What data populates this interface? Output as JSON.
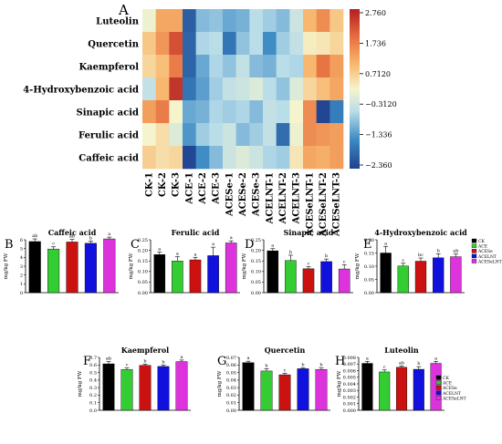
{
  "figure": {
    "panel_letters": [
      "A",
      "B",
      "C",
      "D",
      "E",
      "F",
      "G",
      "H"
    ],
    "legend_groups": [
      "CK",
      "ACE",
      "ACESe",
      "ACELNT",
      "ACESeLNT"
    ],
    "group_colors": [
      "#000000",
      "#33cc33",
      "#cc1111",
      "#1111dd",
      "#dd33dd"
    ]
  },
  "chart_data": [
    {
      "panel": "A",
      "type": "heatmap",
      "rows": [
        "Luteolin",
        "Quercetin",
        "Kaempferol",
        "4-Hydroxybenzoic acid",
        "Sinapic acid",
        "Ferulic acid",
        "Caffeic acid"
      ],
      "columns": [
        "CK-1",
        "CK-2",
        "CK-3",
        "ACE-1",
        "ACE-2",
        "ACE-3",
        "ACESe-1",
        "ACESe-2",
        "ACESe-3",
        "ACELNT-1",
        "ACELNT-2",
        "ACELNT-3",
        "ACESeLNT-1",
        "ACESeLNT-2",
        "ACESeLNT-3"
      ],
      "colorbar_ticks": [
        "2.760",
        "1.736",
        "0.7120",
        "−0.3120",
        "−1.336",
        "−2.360"
      ],
      "color_range": [
        -2.36,
        2.76
      ],
      "values": [
        [
          0.1,
          1.2,
          1.2,
          -2.0,
          -0.9,
          -0.8,
          -1.1,
          -1.0,
          -0.5,
          -0.7,
          -0.9,
          -0.3,
          1.0,
          1.5,
          0.8
        ],
        [
          0.8,
          1.4,
          2.2,
          -1.9,
          -0.6,
          -0.5,
          -1.7,
          -0.8,
          -0.5,
          -1.4,
          -0.7,
          -0.4,
          0.3,
          0.4,
          0.6
        ],
        [
          0.6,
          0.9,
          1.7,
          -1.9,
          -1.1,
          -0.6,
          -0.8,
          -0.4,
          -0.9,
          -1.0,
          -0.5,
          -0.6,
          1.0,
          1.8,
          1.3
        ],
        [
          -0.4,
          1.0,
          2.5,
          -1.7,
          -1.2,
          -0.7,
          -0.4,
          -0.3,
          -0.1,
          -0.5,
          -0.8,
          -0.1,
          0.6,
          0.9,
          1.2
        ],
        [
          1.3,
          1.7,
          0.2,
          -1.1,
          -1.0,
          -0.6,
          -0.7,
          -0.6,
          -0.9,
          -0.4,
          -0.5,
          0.2,
          1.5,
          -2.3,
          -1.6
        ],
        [
          0.2,
          0.5,
          -0.1,
          -1.3,
          -0.7,
          -0.5,
          -0.3,
          -0.9,
          -0.7,
          -0.4,
          -1.8,
          0.1,
          1.5,
          1.4,
          1.3
        ],
        [
          0.7,
          0.5,
          0.6,
          -2.3,
          -1.4,
          -0.9,
          -0.3,
          -0.1,
          -0.3,
          -0.6,
          -0.7,
          0.4,
          1.2,
          1.1,
          1.3
        ]
      ]
    },
    {
      "panel": "B",
      "type": "bar",
      "title": "Caffeic acid",
      "ylabel": "mg/kg FW",
      "categories": [
        "CK",
        "ACE",
        "ACESe",
        "ACELNT",
        "ACESeLNT"
      ],
      "values": [
        5.8,
        4.95,
        5.75,
        5.6,
        6.1
      ],
      "errors": [
        0.3,
        0.25,
        0.3,
        0.25,
        0.2
      ],
      "letters": [
        "ab",
        "c",
        "ab",
        "b",
        "a"
      ],
      "ylim": [
        0,
        6
      ],
      "yticks": [
        "0",
        "1",
        "2",
        "3",
        "4",
        "5",
        "6"
      ]
    },
    {
      "panel": "C",
      "type": "bar",
      "title": "Ferulic acid",
      "ylabel": "mg/kg FW",
      "categories": [
        "CK",
        "ACE",
        "ACESe",
        "ACELNT",
        "ACESeLNT"
      ],
      "values": [
        0.18,
        0.15,
        0.155,
        0.175,
        0.235
      ],
      "errors": [
        0.012,
        0.02,
        0.012,
        0.04,
        0.01
      ],
      "letters": [
        "a",
        "a",
        "a",
        "a",
        "a"
      ],
      "ylim": [
        0,
        0.25
      ],
      "yticks": [
        "0.00",
        "0.05",
        "0.10",
        "0.15",
        "0.20",
        "0.25"
      ]
    },
    {
      "panel": "D",
      "type": "bar",
      "title": "Sinapic acid",
      "ylabel": "mg/kg FW",
      "categories": [
        "CK",
        "ACE",
        "ACESe",
        "ACELNT",
        "ACESeLNT"
      ],
      "values": [
        0.198,
        0.152,
        0.113,
        0.147,
        0.112
      ],
      "errors": [
        0.01,
        0.025,
        0.01,
        0.012,
        0.02
      ],
      "letters": [
        "a",
        "b",
        "c",
        "b",
        "c"
      ],
      "ylim": [
        0,
        0.25
      ],
      "yticks": [
        "0.00",
        "0.05",
        "0.10",
        "0.15",
        "0.20",
        "0.25"
      ]
    },
    {
      "panel": "E",
      "type": "bar",
      "title": "4-Hydroxybenzoic acid",
      "ylabel": "mg/kg FW",
      "categories": [
        "CK",
        "ACE",
        "ACESe",
        "ACELNT",
        "ACESeLNT"
      ],
      "values": [
        0.15,
        0.101,
        0.119,
        0.132,
        0.136
      ],
      "errors": [
        0.025,
        0.01,
        0.012,
        0.015,
        0.01
      ],
      "letters": [
        "a",
        "c",
        "bc",
        "b",
        "ab"
      ],
      "ylim": [
        0,
        0.2
      ],
      "yticks": [
        "0.00",
        "0.05",
        "0.10",
        "0.15",
        "0.20"
      ]
    },
    {
      "panel": "F",
      "type": "bar",
      "title": "Kaempferol",
      "ylabel": "mg/kg FW",
      "categories": [
        "CK",
        "ACE",
        "ACESe",
        "ACELNT",
        "ACESeLNT"
      ],
      "values": [
        0.615,
        0.54,
        0.595,
        0.58,
        0.645
      ],
      "errors": [
        0.03,
        0.02,
        0.015,
        0.02,
        0.02
      ],
      "letters": [
        "ab",
        "c",
        "b",
        "b",
        "a"
      ],
      "ylim": [
        0,
        0.7
      ],
      "yticks": [
        "0.0",
        "0.1",
        "0.2",
        "0.3",
        "0.4",
        "0.5",
        "0.6",
        "0.7"
      ]
    },
    {
      "panel": "G",
      "type": "bar",
      "title": "Quercetin",
      "ylabel": "mg/kg FW",
      "categories": [
        "CK",
        "ACE",
        "ACESe",
        "ACELNT",
        "ACESeLNT"
      ],
      "values": [
        0.063,
        0.052,
        0.047,
        0.055,
        0.054
      ],
      "errors": [
        0.002,
        0.003,
        0.002,
        0.001,
        0.002
      ],
      "letters": [
        "a",
        "b",
        "c",
        "b",
        "b"
      ],
      "ylim": [
        0,
        0.07
      ],
      "yticks": [
        "0.00",
        "0.01",
        "0.02",
        "0.03",
        "0.04",
        "0.05",
        "0.06",
        "0.07"
      ]
    },
    {
      "panel": "H",
      "type": "bar",
      "title": "Luteolin",
      "ylabel": "mg/kg FW",
      "categories": [
        "CK",
        "ACE",
        "ACESe",
        "ACELNT",
        "ACESeLNT"
      ],
      "values": [
        0.0071,
        0.0058,
        0.0065,
        0.0062,
        0.0071
      ],
      "errors": [
        0.0003,
        0.0003,
        0.0002,
        0.0004,
        0.0003
      ],
      "letters": [
        "a",
        "c",
        "ab",
        "b",
        "a"
      ],
      "ylim": [
        0,
        0.008
      ],
      "yticks": [
        "0.000",
        "0.001",
        "0.002",
        "0.003",
        "0.004",
        "0.005",
        "0.006",
        "0.007",
        "0.008"
      ]
    }
  ]
}
